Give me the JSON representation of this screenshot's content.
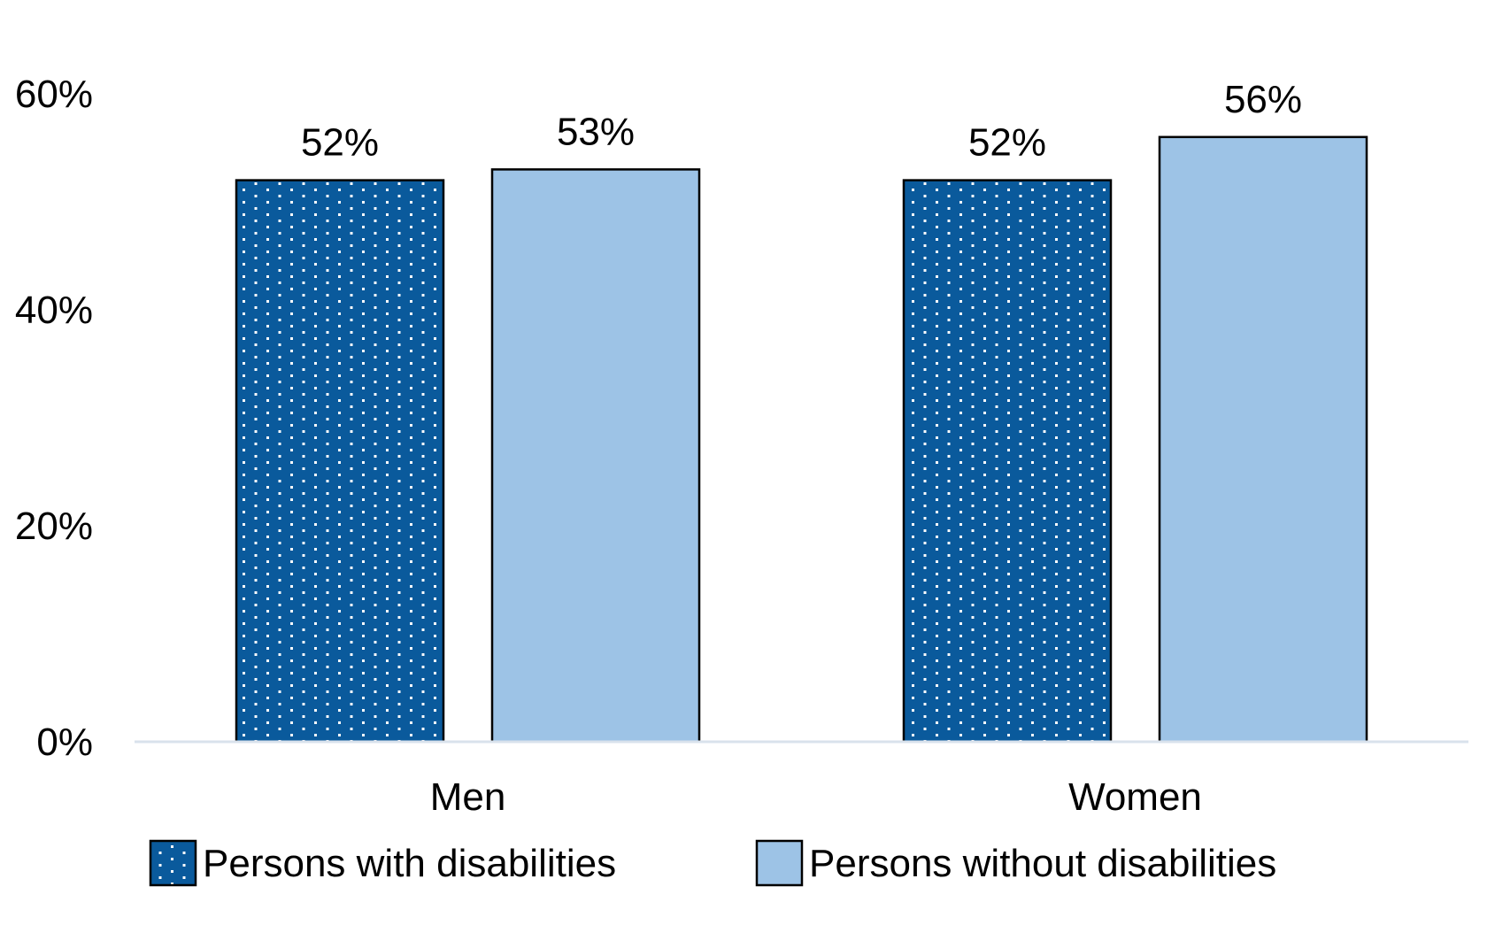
{
  "chart_data": {
    "type": "bar",
    "title": "",
    "xlabel": "",
    "ylabel": "",
    "categories": [
      "Men",
      "Women"
    ],
    "series": [
      {
        "name": "Persons with disabilities",
        "values": [
          52,
          52
        ],
        "labels": [
          "52%",
          "52%"
        ],
        "color": "#0A5A9C",
        "pattern": "dotted"
      },
      {
        "name": "Persons without disabilities",
        "values": [
          53,
          56
        ],
        "labels": [
          "53%",
          "56%"
        ],
        "color": "#9DC3E6",
        "pattern": "solid"
      }
    ],
    "ylim": [
      0,
      60
    ],
    "yticks": [
      0,
      20,
      40,
      60
    ],
    "ytick_labels": [
      "0%",
      "20%",
      "40%",
      "60%"
    ],
    "grid": false,
    "legend_position": "bottom"
  }
}
